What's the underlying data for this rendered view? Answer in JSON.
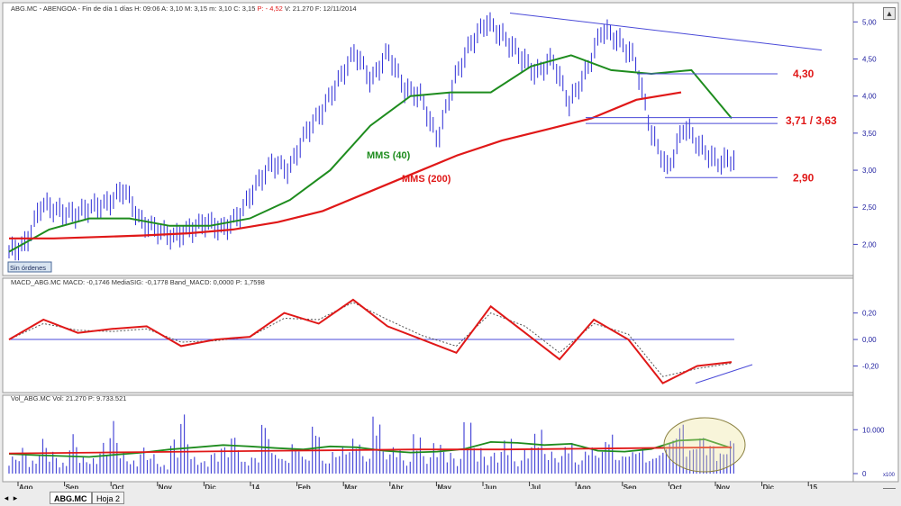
{
  "app": {
    "tabs": [
      {
        "label": "ABG.MC",
        "active": true
      },
      {
        "label": "Hoja 2",
        "active": false
      }
    ],
    "nav_left": "◂",
    "nav_right": "▸",
    "scroll_up": "▴",
    "scroll_down": "▾"
  },
  "colors": {
    "price": "#2b2bd6",
    "mm40": "#1e8c1e",
    "mm200": "#e01818",
    "macd": "#e01818",
    "signal": "#555555",
    "level_line": "#4a4ad8",
    "volume": "#4a4ad8",
    "annotation": "#e01818",
    "grid_axis": "#4040c0"
  },
  "chart_data": [
    {
      "type": "line",
      "title": "ABG.MC - ABENGOA - Fin de día 1 días  H: 09:06  A: 3,10  M: 3,15  m: 3,10  C: 3,15  P: - 4,52  V: 21.270  F: 12/11/2014",
      "header_segments": [
        {
          "text": "ABG.MC - ABENGOA - Fin de día 1 días  H: 09:06  A: 3,10  M: 3,15  m: 3,10  C: 3,15  ",
          "color": "#333333"
        },
        {
          "text": "P: - 4,52",
          "color": "#e01818"
        },
        {
          "text": "  V: 21.270  F: 12/11/2014",
          "color": "#333333"
        }
      ],
      "x_labels": [
        "Ago",
        "Sep",
        "Oct",
        "Nov",
        "Dic",
        "14",
        "Feb",
        "Mar",
        "Abr",
        "May",
        "Jun",
        "Jul",
        "Ago",
        "Sep",
        "Oct",
        "Nov",
        "Dic",
        "15"
      ],
      "y_ticks": [
        "5,00",
        "4,50",
        "4,00",
        "3,50",
        "3,00",
        "2,50",
        "2,00"
      ],
      "ylim": [
        1.75,
        5.15
      ],
      "series": [
        {
          "name": "MMS (40)",
          "values": [
            1.9,
            2.2,
            2.35,
            2.35,
            2.25,
            2.25,
            2.35,
            2.6,
            3.0,
            3.6,
            4.0,
            4.05,
            4.05,
            4.4,
            4.55,
            4.35,
            4.3,
            4.35,
            3.7
          ]
        },
        {
          "name": "MMS (200)",
          "values": [
            2.08,
            2.08,
            2.1,
            2.12,
            2.15,
            2.2,
            2.3,
            2.45,
            2.7,
            2.95,
            3.2,
            3.4,
            3.55,
            3.7,
            3.95,
            4.05
          ]
        }
      ],
      "price_path": [
        1.9,
        2.0,
        2.55,
        2.45,
        2.4,
        2.5,
        2.55,
        2.75,
        2.3,
        2.2,
        2.1,
        2.2,
        2.3,
        2.2,
        2.4,
        2.8,
        3.1,
        3.0,
        3.5,
        3.8,
        4.2,
        4.6,
        4.2,
        4.6,
        4.1,
        4.0,
        3.4,
        4.2,
        4.7,
        5.0,
        4.8,
        4.55,
        4.3,
        4.5,
        3.9,
        4.3,
        4.9,
        4.75,
        4.5,
        3.5,
        3.0,
        3.6,
        3.3,
        3.1,
        3.15
      ],
      "levels": [
        "4,30",
        "3,71 / 3,63",
        "2,90"
      ],
      "annotations": {
        "sin_ordenes": "Sin órdenes"
      }
    },
    {
      "type": "line",
      "title": "MACD_ABG.MC  MACD: -0,1746  MediaSIG: -0,1778  Band_MACD: 0,0000  P: 1,7598",
      "y_ticks": [
        "0,20",
        "0,00",
        "-0,20"
      ],
      "ylim": [
        -0.36,
        0.32
      ],
      "series": [
        {
          "name": "MACD",
          "values": [
            0.0,
            0.15,
            0.05,
            0.08,
            0.1,
            -0.05,
            0.0,
            0.02,
            0.2,
            0.12,
            0.3,
            0.1,
            0.0,
            -0.1,
            0.25,
            0.05,
            -0.15,
            0.15,
            0.0,
            -0.33,
            -0.2,
            -0.17
          ]
        },
        {
          "name": "MediaSIG",
          "values": [
            0.0,
            0.12,
            0.07,
            0.06,
            0.08,
            -0.02,
            -0.01,
            0.02,
            0.16,
            0.15,
            0.28,
            0.15,
            0.03,
            -0.05,
            0.2,
            0.1,
            -0.1,
            0.12,
            0.04,
            -0.28,
            -0.22,
            -0.18
          ]
        }
      ]
    },
    {
      "type": "bar",
      "title": "Vol_ABG.MC  Vol: 21.270  P: 9.733.521",
      "y_ticks": [
        "10.000",
        "0"
      ],
      "unit": "x100",
      "ylim": [
        0,
        16000
      ],
      "bars": [
        4000,
        6000,
        3000,
        8000,
        5000,
        2500,
        9000,
        4000,
        3500,
        7000,
        12000,
        5000,
        3000,
        6000,
        4500,
        2000,
        8000,
        14000,
        4000,
        3000,
        5000,
        6500,
        9000,
        3000,
        4000,
        12000,
        5000,
        3500,
        7000,
        4000,
        11000,
        3000,
        5000,
        6000,
        8000,
        4000,
        13000,
        5000,
        6000,
        3000,
        9000,
        4000,
        7000,
        5000,
        3500,
        12000,
        6000,
        4000,
        5000,
        8000,
        3000,
        6000,
        10000,
        5000,
        4000,
        7000,
        3000,
        6000,
        5000,
        9000,
        4000,
        5000,
        6000,
        3500,
        5000,
        8000,
        12000,
        6000,
        9000,
        7000,
        5000,
        8000
      ],
      "series": [
        {
          "name": "Vol MA green",
          "values": [
            4500,
            4200,
            4000,
            3800,
            4300,
            4800,
            5500,
            6000,
            6500,
            6200,
            5800,
            5500,
            6200,
            6000,
            5200,
            4800,
            5000,
            5600,
            7200,
            7000,
            6500,
            6800,
            5200,
            5000,
            5600,
            7500,
            7800,
            5800
          ]
        },
        {
          "name": "Vol MA red",
          "values": [
            4600,
            4700,
            4800,
            4900,
            5000,
            5100,
            5200,
            5300,
            5400,
            5500,
            5500,
            5500,
            5600,
            5700,
            5800,
            5900,
            6000
          ]
        }
      ]
    }
  ]
}
